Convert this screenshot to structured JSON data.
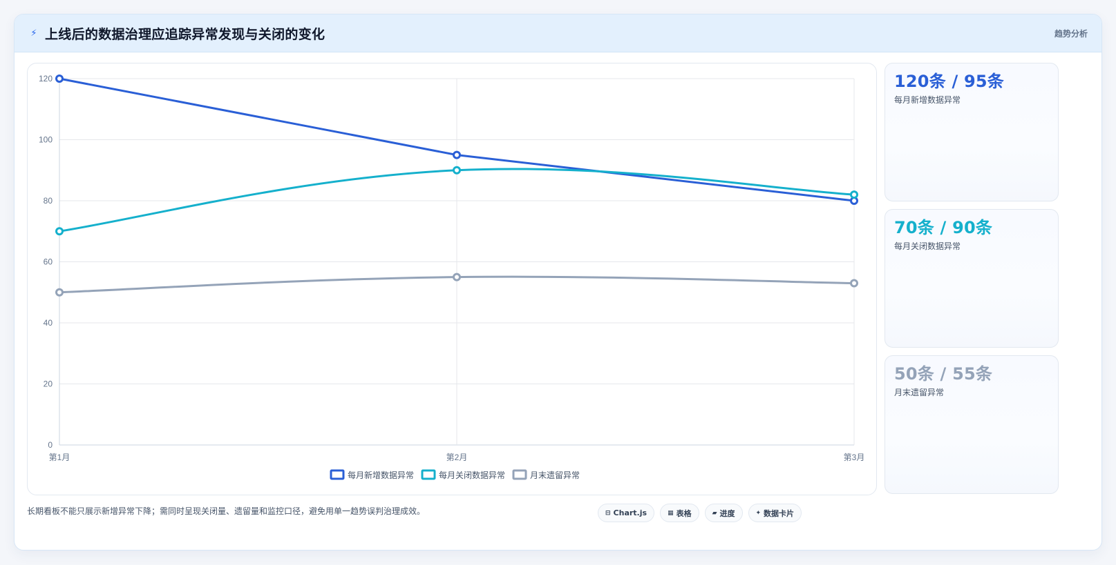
{
  "header": {
    "title_icon": "trend-lightning-icon",
    "title": "上线后的数据治理应追踪异常发现与关闭的变化",
    "tag": "趋势分析"
  },
  "chart_data": {
    "type": "line",
    "categories": [
      "第1月",
      "第2月",
      "第3月"
    ],
    "series": [
      {
        "name": "每月新增数据异常",
        "values": [
          120,
          95,
          80
        ],
        "color": "#2a5fd6",
        "curve": "straight"
      },
      {
        "name": "每月关闭数据异常",
        "values": [
          70,
          90,
          82
        ],
        "color": "#15b0cc",
        "curve": "smooth"
      },
      {
        "name": "月末遗留异常",
        "values": [
          50,
          55,
          53
        ],
        "color": "#94a3b8",
        "curve": "smooth"
      }
    ],
    "ylim": [
      0,
      120
    ],
    "yticks": [
      0,
      20,
      40,
      60,
      80,
      100,
      120
    ],
    "grid": true,
    "legend": "bottom"
  },
  "stats": [
    {
      "value": "120条 / 95条",
      "label": "每月新增数据异常",
      "color": "#2a5fd6"
    },
    {
      "value": "70条 / 90条",
      "label": "每月关闭数据异常",
      "color": "#15b0cc"
    },
    {
      "value": "50条 / 55条",
      "label": "月末遗留异常",
      "color": "#94a3b8"
    }
  ],
  "footer": {
    "note": "长期看板不能只展示新增异常下降；需同时呈现关闭量、遗留量和监控口径，避免用单一趋势误判治理成效。",
    "tabs": [
      {
        "icon": "chart-icon",
        "glyph": "⊟",
        "label": "Chart.js"
      },
      {
        "icon": "table-icon",
        "glyph": "▦",
        "label": "表格"
      },
      {
        "icon": "progress-icon",
        "glyph": "▰",
        "label": "进度"
      },
      {
        "icon": "sparkle-icon",
        "glyph": "✦",
        "label": "数据卡片"
      }
    ]
  }
}
